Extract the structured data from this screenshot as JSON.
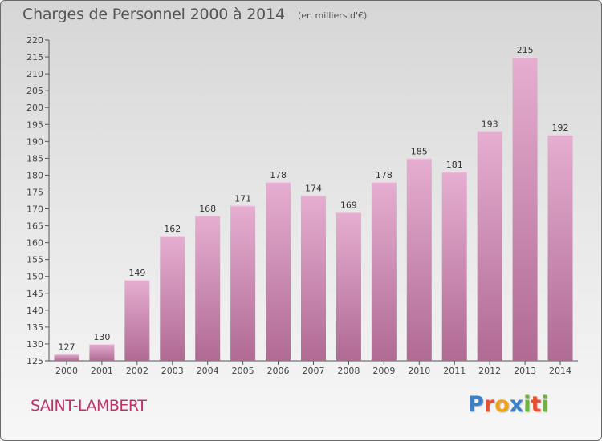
{
  "header": {
    "title": "Charges de Personnel 2000 à 2014",
    "subtitle": "(en milliers d'€)"
  },
  "footer": {
    "commune": "SAINT-LAMBERT",
    "logo_letters": [
      "P",
      "r",
      "o",
      "x",
      "i",
      "t",
      "i"
    ]
  },
  "colors": {
    "bar_top": "#e6aed1",
    "bar_bottom": "#b06a94",
    "accent": "#c0306a",
    "logo": [
      "#3b7fc4",
      "#e8502f",
      "#f2a31b",
      "#3b7fc4",
      "#6fb43f",
      "#e8502f",
      "#6fb43f"
    ]
  },
  "chart_data": {
    "type": "bar",
    "title": "Charges de Personnel 2000 à 2014",
    "subtitle": "(en milliers d'€)",
    "categories": [
      "2000",
      "2001",
      "2002",
      "2003",
      "2004",
      "2005",
      "2006",
      "2007",
      "2008",
      "2009",
      "2010",
      "2011",
      "2012",
      "2013",
      "2014"
    ],
    "values": [
      127,
      130,
      149,
      162,
      168,
      171,
      178,
      174,
      169,
      178,
      185,
      181,
      193,
      215,
      192
    ],
    "ylim": [
      125,
      220
    ],
    "yticks": [
      125,
      130,
      135,
      140,
      145,
      150,
      155,
      160,
      165,
      170,
      175,
      180,
      185,
      190,
      195,
      200,
      205,
      210,
      215,
      220
    ],
    "grid": false,
    "data_labels": true
  }
}
